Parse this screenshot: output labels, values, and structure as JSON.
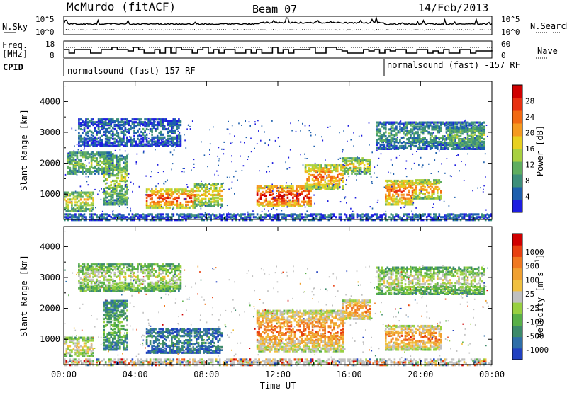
{
  "header": {
    "station": "McMurdo (fitACF)",
    "beam": "Beam 07",
    "date": "14/Feb/2013"
  },
  "top_panels": {
    "nsky_label": "N.Sky",
    "nsky_top": "10^5",
    "nsky_bottom": "10^0",
    "nsearch_label": "N.Search",
    "nsearch_top": "10^5",
    "nsearch_bottom": "10^0",
    "freq_label_1": "Freq.",
    "freq_label_2": "[MHz]",
    "freq_top": "18",
    "freq_bottom": "8",
    "nave_label": "Nave",
    "nave_top": "60",
    "nave_bottom": "0",
    "cpid_label": "CPID",
    "cpid_1": "normalsound (fast) 157 RF",
    "cpid_2": "normalsound (fast) -157 RF"
  },
  "chart_data": [
    {
      "type": "heatmap",
      "name": "power",
      "ylabel": "Slant Range [km]",
      "xlabel": "",
      "yticks": [
        "1000",
        "2000",
        "3000",
        "4000"
      ],
      "ylim": [
        180,
        4650
      ],
      "xlim": [
        0,
        24
      ],
      "colorbar": {
        "label": "Power [dB]",
        "ticks": [
          "4",
          "8",
          "12",
          "16",
          "20",
          "24",
          "28"
        ],
        "range": [
          0,
          32
        ],
        "colors": [
          "#1d1de0",
          "#1d5fae",
          "#3d8f7a",
          "#5fae5f",
          "#a8d040",
          "#e8d020",
          "#f59a20",
          "#f26a12",
          "#e83010",
          "#d00000"
        ]
      },
      "echo_regions": [
        {
          "t0": 0.0,
          "t1": 1.7,
          "r0": 500,
          "r1": 1100,
          "level": 0.55
        },
        {
          "t0": 0.2,
          "t1": 2.8,
          "r0": 1700,
          "r1": 2400,
          "level": 0.4
        },
        {
          "t0": 2.2,
          "t1": 3.6,
          "r0": 700,
          "r1": 2300,
          "level": 0.45
        },
        {
          "t0": 4.6,
          "t1": 7.3,
          "r0": 600,
          "r1": 1200,
          "level": 0.85
        },
        {
          "t0": 7.3,
          "t1": 8.8,
          "r0": 650,
          "r1": 1400,
          "level": 0.6
        },
        {
          "t0": 10.8,
          "t1": 13.8,
          "r0": 650,
          "r1": 1300,
          "level": 0.95
        },
        {
          "t0": 13.5,
          "t1": 15.6,
          "r0": 1200,
          "r1": 2000,
          "level": 0.75
        },
        {
          "t0": 15.6,
          "t1": 17.2,
          "r0": 1700,
          "r1": 2200,
          "level": 0.55
        },
        {
          "t0": 18.0,
          "t1": 19.6,
          "r0": 700,
          "r1": 1500,
          "level": 0.8
        },
        {
          "t0": 19.6,
          "t1": 21.2,
          "r0": 900,
          "r1": 1500,
          "level": 0.7
        },
        {
          "t0": 0.8,
          "t1": 6.5,
          "r0": 2600,
          "r1": 3500,
          "level": 0.2
        },
        {
          "t0": 17.5,
          "t1": 23.6,
          "r0": 2500,
          "r1": 3400,
          "level": 0.3
        },
        {
          "t0": 21.5,
          "t1": 23.6,
          "r0": 2600,
          "r1": 3200,
          "level": 0.45
        }
      ]
    },
    {
      "type": "heatmap",
      "name": "velocity",
      "ylabel": "Slant Range [km]",
      "xlabel": "Time UT",
      "yticks": [
        "1000",
        "2000",
        "3000",
        "4000"
      ],
      "xticks": [
        "00:00",
        "04:00",
        "08:00",
        "12:00",
        "16:00",
        "20:00",
        "00:00"
      ],
      "ylim": [
        180,
        4650
      ],
      "xlim": [
        0,
        24
      ],
      "colorbar": {
        "label": "Velocity [m s^-1]",
        "ticks": [
          "1000",
          "500",
          "100",
          "25",
          "-25",
          "-100",
          "-500",
          "-1000"
        ],
        "colors": [
          "#2040c0",
          "#2e6ea8",
          "#3c8a6a",
          "#58b048",
          "#98d040",
          "#c0c0c0",
          "#f0c040",
          "#f0a030",
          "#f07820",
          "#e84010",
          "#d00000"
        ]
      },
      "echo_regions": [
        {
          "t0": 0.0,
          "t1": 1.7,
          "r0": 500,
          "r1": 1100,
          "level": 0.6
        },
        {
          "t0": 2.2,
          "t1": 3.6,
          "r0": 700,
          "r1": 2300,
          "level": 0.35
        },
        {
          "t0": 4.6,
          "t1": 8.8,
          "r0": 600,
          "r1": 1400,
          "level": 0.2
        },
        {
          "t0": 10.8,
          "t1": 15.6,
          "r0": 650,
          "r1": 2000,
          "level": 0.8
        },
        {
          "t0": 15.6,
          "t1": 17.2,
          "r0": 1700,
          "r1": 2300,
          "level": 0.8
        },
        {
          "t0": 18.0,
          "t1": 21.2,
          "r0": 700,
          "r1": 1500,
          "level": 0.8
        },
        {
          "t0": 0.8,
          "t1": 6.5,
          "r0": 2600,
          "r1": 3500,
          "level": 0.5
        },
        {
          "t0": 17.5,
          "t1": 23.6,
          "r0": 2500,
          "r1": 3400,
          "level": 0.5
        }
      ]
    }
  ]
}
